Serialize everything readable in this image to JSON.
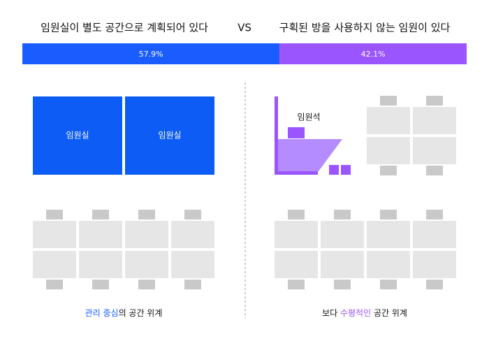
{
  "chart_data": {
    "type": "stacked-bar",
    "vs_label": "VS",
    "series": [
      {
        "name": "임원실이 별도 공간으로 계획되어 있다",
        "color": "#1a5cff",
        "values": [
          57.9
        ],
        "value_labels": [
          "57.9%"
        ]
      },
      {
        "name": "구획된 방을 사용하지 않는 임원이 있다",
        "color": "#9b55ff",
        "values": [
          42.1
        ],
        "value_labels": [
          "42.1%"
        ]
      }
    ]
  },
  "left_diagram": {
    "rooms": [
      "임원실",
      "임원실"
    ],
    "caption": [
      {
        "text": "관리 중심",
        "highlight": true
      },
      {
        "text": "의 공간 위계",
        "highlight": false
      }
    ]
  },
  "right_diagram": {
    "executive_seat": "임원석",
    "caption": [
      {
        "text": "보다 ",
        "highlight": false
      },
      {
        "text": "수평적인",
        "highlight": true
      },
      {
        "text": " 공간 위계",
        "highlight": false
      }
    ]
  }
}
